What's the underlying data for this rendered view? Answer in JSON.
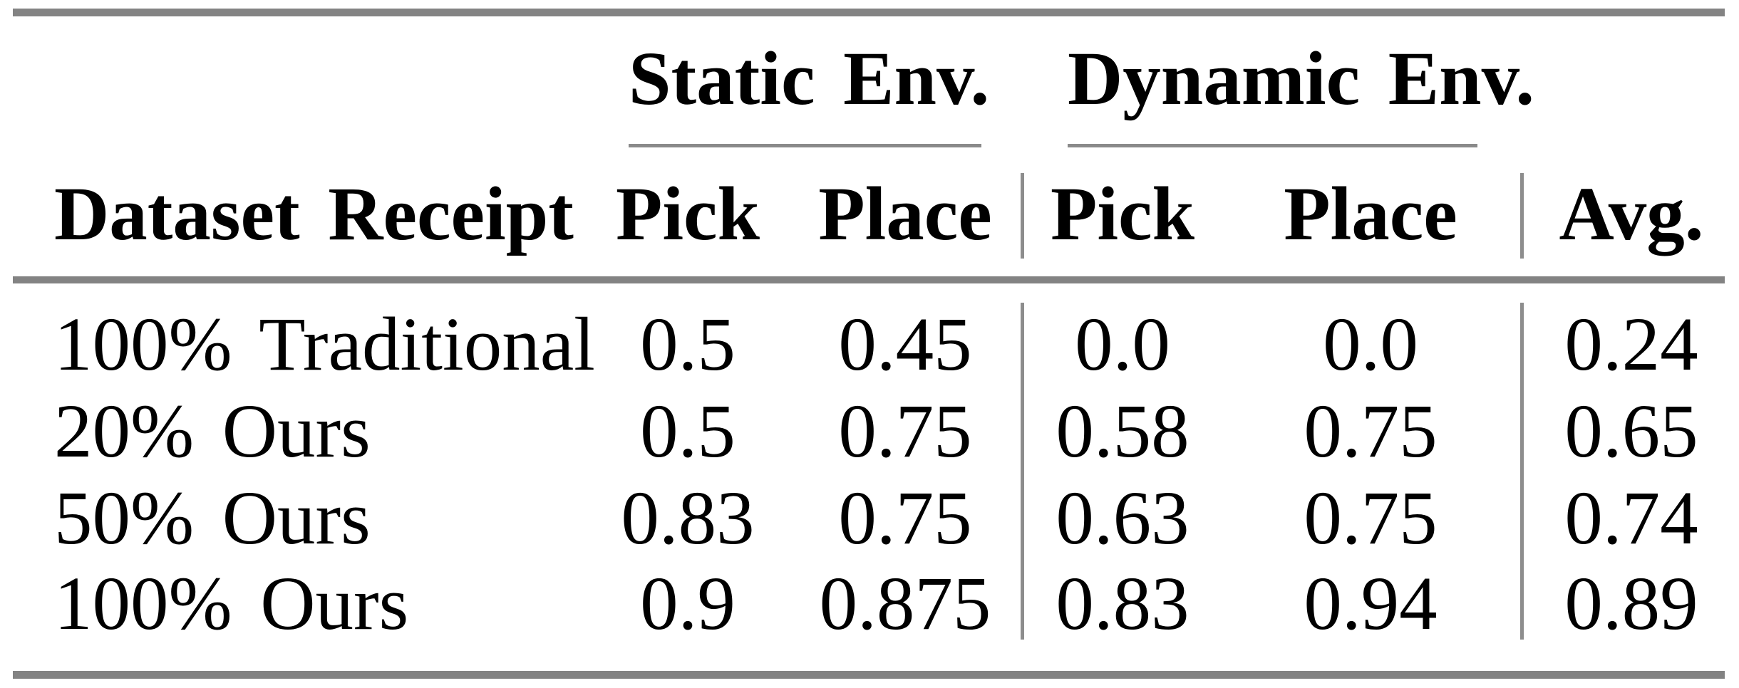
{
  "table": {
    "group_headers": {
      "static": "Static Env.",
      "dynamic": "Dynamic Env."
    },
    "headers": {
      "dataset": "Dataset Receipt",
      "static_pick": "Pick",
      "static_place": "Place",
      "dynamic_pick": "Pick",
      "dynamic_place": "Place",
      "avg": "Avg."
    },
    "rows": [
      {
        "label": "100% Traditional",
        "static_pick": "0.5",
        "static_place": "0.45",
        "dynamic_pick": "0.0",
        "dynamic_place": "0.0",
        "avg": "0.24"
      },
      {
        "label": "20% Ours",
        "static_pick": "0.5",
        "static_place": "0.75",
        "dynamic_pick": "0.58",
        "dynamic_place": "0.75",
        "avg": "0.65"
      },
      {
        "label": "50% Ours",
        "static_pick": "0.83",
        "static_place": "0.75",
        "dynamic_pick": "0.63",
        "dynamic_place": "0.75",
        "avg": "0.74"
      },
      {
        "label": "100% Ours",
        "static_pick": "0.9",
        "static_place": "0.875",
        "dynamic_pick": "0.83",
        "dynamic_place": "0.94",
        "avg": "0.89"
      }
    ]
  },
  "colors": {
    "rule_gray": "#838383",
    "text": "#000000",
    "background": "#ffffff"
  },
  "chart_data": {
    "type": "table",
    "title": "",
    "column_groups": [
      "Static Env.",
      "Dynamic Env."
    ],
    "columns": [
      "Dataset Receipt",
      "Static Env. Pick",
      "Static Env. Place",
      "Dynamic Env. Pick",
      "Dynamic Env. Place",
      "Avg."
    ],
    "rows": [
      [
        "100% Traditional",
        0.5,
        0.45,
        0.0,
        0.0,
        0.24
      ],
      [
        "20% Ours",
        0.5,
        0.75,
        0.58,
        0.75,
        0.65
      ],
      [
        "50% Ours",
        0.83,
        0.75,
        0.63,
        0.75,
        0.74
      ],
      [
        "100% Ours",
        0.9,
        0.875,
        0.83,
        0.94,
        0.89
      ]
    ]
  }
}
